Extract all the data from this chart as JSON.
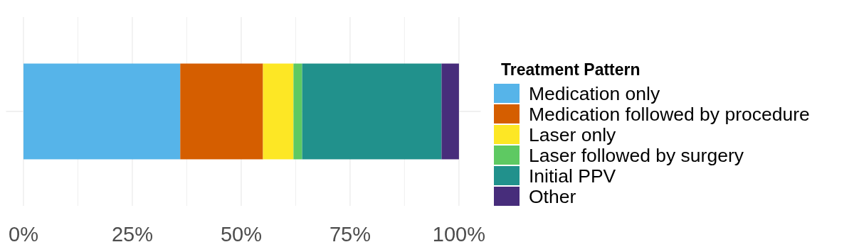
{
  "chart_data": {
    "type": "bar",
    "orientation": "horizontal",
    "stacked": true,
    "categories": [
      null
    ],
    "legend_title": "Treatment Pattern",
    "legend": "right",
    "series": [
      {
        "name": "Medication only",
        "color": "#56b4e9",
        "values": [
          36
        ]
      },
      {
        "name": "Medication followed by procedure",
        "color": "#d55e00",
        "values": [
          19
        ]
      },
      {
        "name": "Laser only",
        "color": "#fde725",
        "values": [
          7
        ]
      },
      {
        "name": "Laser followed by surgery",
        "color": "#5ec962",
        "values": [
          2
        ]
      },
      {
        "name": "Initial PPV",
        "color": "#21918c",
        "values": [
          32
        ]
      },
      {
        "name": "Other",
        "color": "#472d7b",
        "values": [
          4
        ]
      }
    ],
    "xlim": [
      -4,
      105
    ],
    "xticks": [
      {
        "value": 0,
        "label": "0%"
      },
      {
        "value": 12.5,
        "label": null
      },
      {
        "value": 25,
        "label": "25%"
      },
      {
        "value": 37.5,
        "label": null
      },
      {
        "value": 50,
        "label": "50%"
      },
      {
        "value": 62.5,
        "label": null
      },
      {
        "value": 75,
        "label": "75%"
      },
      {
        "value": 87.5,
        "label": null
      },
      {
        "value": 100,
        "label": "100%"
      }
    ],
    "grid": true
  }
}
